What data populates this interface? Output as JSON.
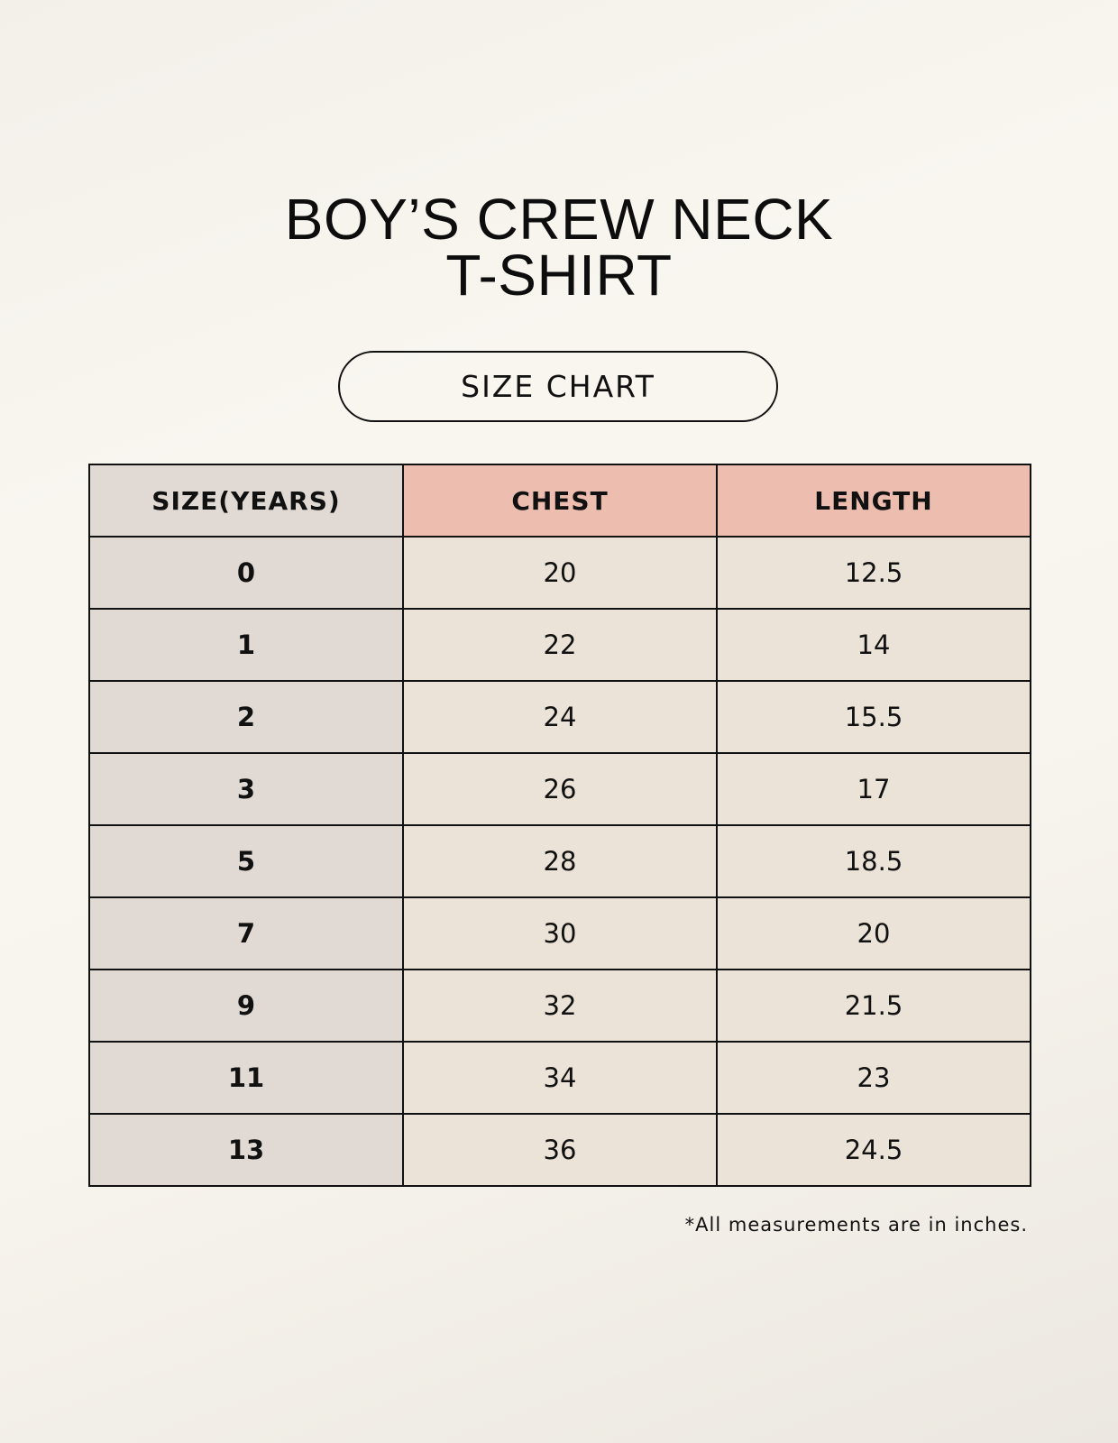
{
  "title_lines": [
    "BOY’S CREW NECK",
    "T-SHIRT"
  ],
  "badge": "SIZE CHART",
  "table": {
    "headers": [
      "SIZE(YEARS)",
      "CHEST",
      "LENGTH"
    ],
    "rows": [
      [
        "0",
        "20",
        "12.5"
      ],
      [
        "1",
        "22",
        "14"
      ],
      [
        "2",
        "24",
        "15.5"
      ],
      [
        "3",
        "26",
        "17"
      ],
      [
        "5",
        "28",
        "18.5"
      ],
      [
        "7",
        "30",
        "20"
      ],
      [
        "9",
        "32",
        "21.5"
      ],
      [
        "11",
        "34",
        "23"
      ],
      [
        "13",
        "36",
        "24.5"
      ]
    ]
  },
  "footnote": "*All measurements are in inches.",
  "colors": {
    "size_column": "#e1d9d3",
    "header_accent": "#edbdb0",
    "cell": "#ebe2d8"
  }
}
